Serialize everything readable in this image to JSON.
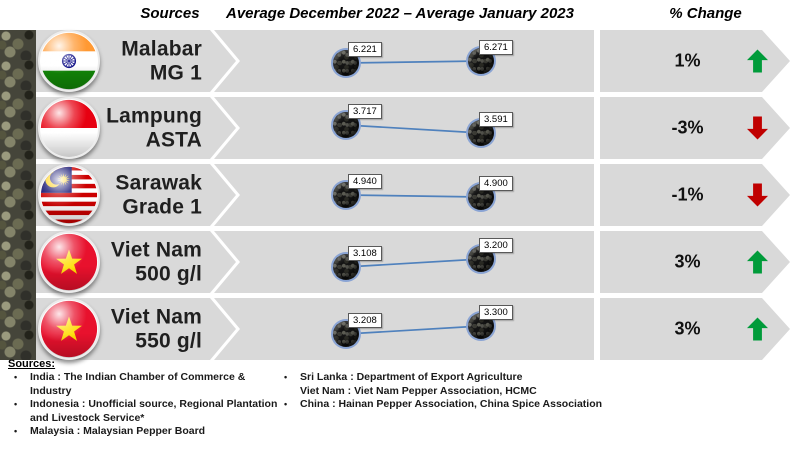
{
  "header": {
    "col_sources": "Sources",
    "col_period": "Average December 2022 – Average January 2023",
    "col_change": "% Change"
  },
  "chart_data": {
    "type": "line",
    "title": "Average December 2022 – Average January 2023",
    "x": [
      "Average December 2022",
      "Average January 2023"
    ],
    "legend_position": "none",
    "grid": false,
    "rows": [
      {
        "label_line1": "Malabar",
        "label_line2": "MG 1",
        "flag_icon": "india-flag-icon",
        "values": [
          6.221,
          6.271
        ],
        "value_labels": [
          "6.221",
          "6.271"
        ],
        "change": "1%",
        "direction": "up"
      },
      {
        "label_line1": "Lampung",
        "label_line2": "ASTA",
        "flag_icon": "indonesia-flag-icon",
        "values": [
          3.717,
          3.591
        ],
        "value_labels": [
          "3.717",
          "3.591"
        ],
        "change": "-3%",
        "direction": "down"
      },
      {
        "label_line1": "Sarawak",
        "label_line2": "Grade 1",
        "flag_icon": "malaysia-flag-icon",
        "values": [
          4.94,
          4.9
        ],
        "value_labels": [
          "4.940",
          "4.900"
        ],
        "change": "-1%",
        "direction": "down"
      },
      {
        "label_line1": "Viet Nam",
        "label_line2": "500 g/l",
        "flag_icon": "vietnam-flag-icon",
        "values": [
          3.108,
          3.2
        ],
        "value_labels": [
          "3.108",
          "3.200"
        ],
        "change": "3%",
        "direction": "up"
      },
      {
        "label_line1": "Viet Nam",
        "label_line2": "550 g/l",
        "flag_icon": "vietnam-flag-icon",
        "values": [
          3.208,
          3.3
        ],
        "value_labels": [
          "3.208",
          "3.300"
        ],
        "change": "3%",
        "direction": "up"
      }
    ]
  },
  "colors": {
    "band": "#d9d9d9",
    "line": "#4f81bd",
    "up_arrow": "#009B3A",
    "down_arrow": "#C00000"
  },
  "footer": {
    "heading": "Sources:",
    "left_items": [
      {
        "text": "India : The Indian Chamber of Commerce & Industry",
        "bullet": true
      },
      {
        "text": "Indonesia : Unofficial source, Regional Plantation and Livestock Service*",
        "bullet": true
      },
      {
        "text": "Malaysia : Malaysian Pepper Board",
        "bullet": true
      }
    ],
    "right_items": [
      {
        "text": "Sri Lanka : Department of Export Agriculture",
        "bullet": true
      },
      {
        "text": "Viet Nam : Viet Nam Pepper Association, HCMC",
        "bullet": false
      },
      {
        "text": "China : Hainan Pepper Association, China Spice Association",
        "bullet": true
      }
    ]
  }
}
